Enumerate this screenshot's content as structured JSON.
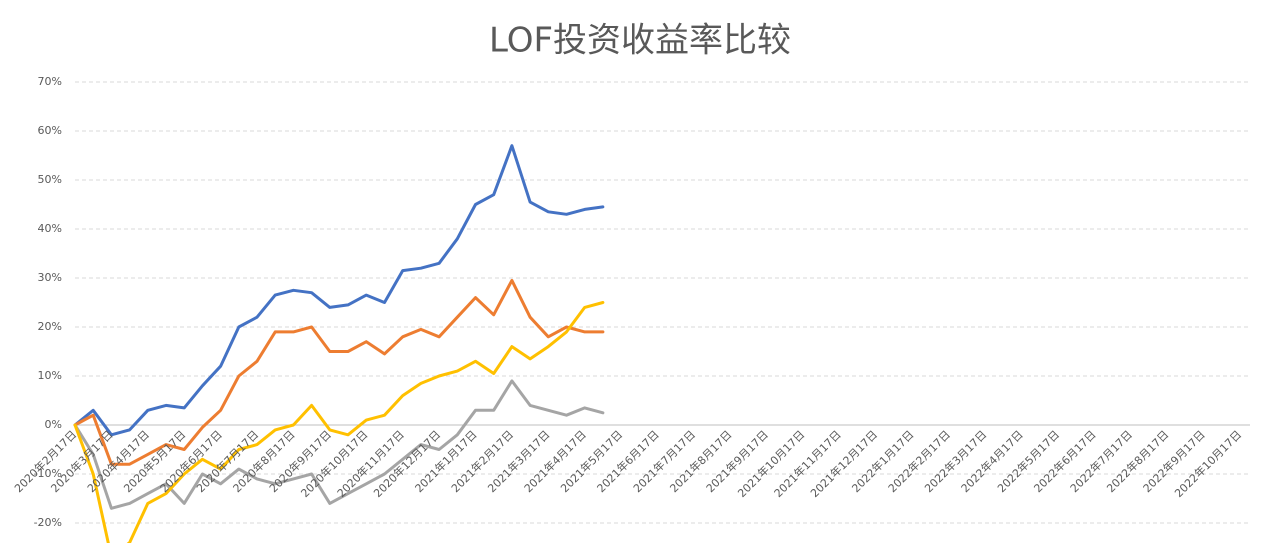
{
  "chart_data": {
    "type": "line",
    "title": "LOF投资收益率比较",
    "categories": [
      "2020年2月17日",
      null,
      "2020年3月17日",
      null,
      "2020年4月17日",
      null,
      "2020年5月17日",
      null,
      "2020年6月17日",
      null,
      "2020年7月17日",
      null,
      "2020年8月17日",
      null,
      "2020年9月17日",
      null,
      "2020年10月17日",
      null,
      "2020年11月17日",
      null,
      "2020年12月17日",
      null,
      "2021年1月17日",
      null,
      "2021年2月17日",
      null,
      "2021年3月17日",
      null,
      "2021年4月17日",
      null,
      "2021年5月17日",
      null,
      "2021年6月17日",
      null,
      "2021年7月17日",
      null,
      "2021年8月17日",
      null,
      "2021年9月17日",
      null,
      "2021年10月17日",
      null,
      "2021年11月17日",
      null,
      "2021年12月17日",
      null,
      "2022年1月17日",
      null,
      "2022年2月17日",
      null,
      "2022年3月17日",
      null,
      "2022年4月17日",
      null,
      "2022年5月17日",
      null,
      "2022年6月17日",
      null,
      "2022年7月17日",
      null,
      "2022年8月17日",
      null,
      "2022年9月17日",
      null,
      "2022年10月17日"
    ],
    "series": [
      {
        "color": "#4472c4",
        "values": [
          0,
          3,
          -2,
          -1,
          3,
          4,
          3.5,
          8,
          12,
          20,
          22,
          26.5,
          27.5,
          27,
          24,
          24.5,
          26.5,
          25,
          31.5,
          32,
          33,
          38,
          45,
          47,
          57,
          45.5,
          43.5,
          43,
          44,
          44.5,
          null,
          null,
          null,
          null,
          null,
          null,
          null,
          null,
          null,
          null,
          null,
          null,
          null,
          null,
          null,
          null,
          null,
          null,
          null,
          null,
          null,
          null,
          null,
          null,
          null,
          null,
          null,
          null,
          null,
          null,
          null,
          null,
          null,
          null,
          null
        ]
      },
      {
        "color": "#ed7d31",
        "values": [
          0,
          2,
          -8,
          -8,
          -6,
          -4,
          -5,
          -0.5,
          3,
          10,
          13,
          19,
          19,
          20,
          15,
          15,
          17,
          14.5,
          18,
          19.5,
          18,
          22,
          26,
          22.5,
          29.5,
          22,
          18,
          20,
          19,
          19,
          null,
          null,
          null,
          null,
          null,
          null,
          null,
          null,
          null,
          null,
          null,
          null,
          null,
          null,
          null,
          null,
          null,
          null,
          null,
          null,
          null,
          null,
          null,
          null,
          null,
          null,
          null,
          null,
          null,
          null,
          null,
          null,
          null,
          null,
          null
        ]
      },
      {
        "color": "#a5a5a5",
        "values": [
          0,
          -6,
          -17,
          -16,
          -14,
          -12,
          -16,
          -10,
          -12,
          -9,
          -11,
          -12,
          -11,
          -10,
          -16,
          -14,
          -12,
          -10,
          -7,
          -4,
          -5,
          -2,
          3,
          3,
          9,
          4,
          3,
          2,
          3.5,
          2.5,
          null,
          null,
          null,
          null,
          null,
          null,
          null,
          null,
          null,
          null,
          null,
          null,
          null,
          null,
          null,
          null,
          null,
          null,
          null,
          null,
          null,
          null,
          null,
          null,
          null,
          null,
          null,
          null,
          null,
          null,
          null,
          null,
          null,
          null,
          null
        ]
      },
      {
        "color": "#ffc000",
        "values": [
          0,
          -10,
          -27,
          -24,
          -16,
          -14,
          -10,
          -7,
          -9,
          -5,
          -4,
          -1,
          0,
          4,
          -1,
          -2,
          1,
          2,
          6,
          8.5,
          10,
          11,
          13,
          10.5,
          16,
          13.5,
          16,
          19,
          24,
          25,
          null,
          null,
          null,
          null,
          null,
          null,
          null,
          null,
          null,
          null,
          null,
          null,
          null,
          null,
          null,
          null,
          null,
          null,
          null,
          null,
          null,
          null,
          null,
          null,
          null,
          null,
          null,
          null,
          null,
          null,
          null,
          null,
          null,
          null,
          null
        ]
      }
    ],
    "ylim": [
      -20,
      70
    ],
    "yticks": [
      {
        "value": -20,
        "label": "-20%"
      },
      {
        "value": -10,
        "label": "-10%"
      },
      {
        "value": 0,
        "label": "0%"
      },
      {
        "value": 10,
        "label": "10%"
      },
      {
        "value": 20,
        "label": "20%"
      },
      {
        "value": 30,
        "label": "30%"
      },
      {
        "value": 40,
        "label": "40%"
      },
      {
        "value": 50,
        "label": "50%"
      },
      {
        "value": 60,
        "label": "60%"
      },
      {
        "value": 70,
        "label": "70%"
      }
    ],
    "grid": true
  }
}
